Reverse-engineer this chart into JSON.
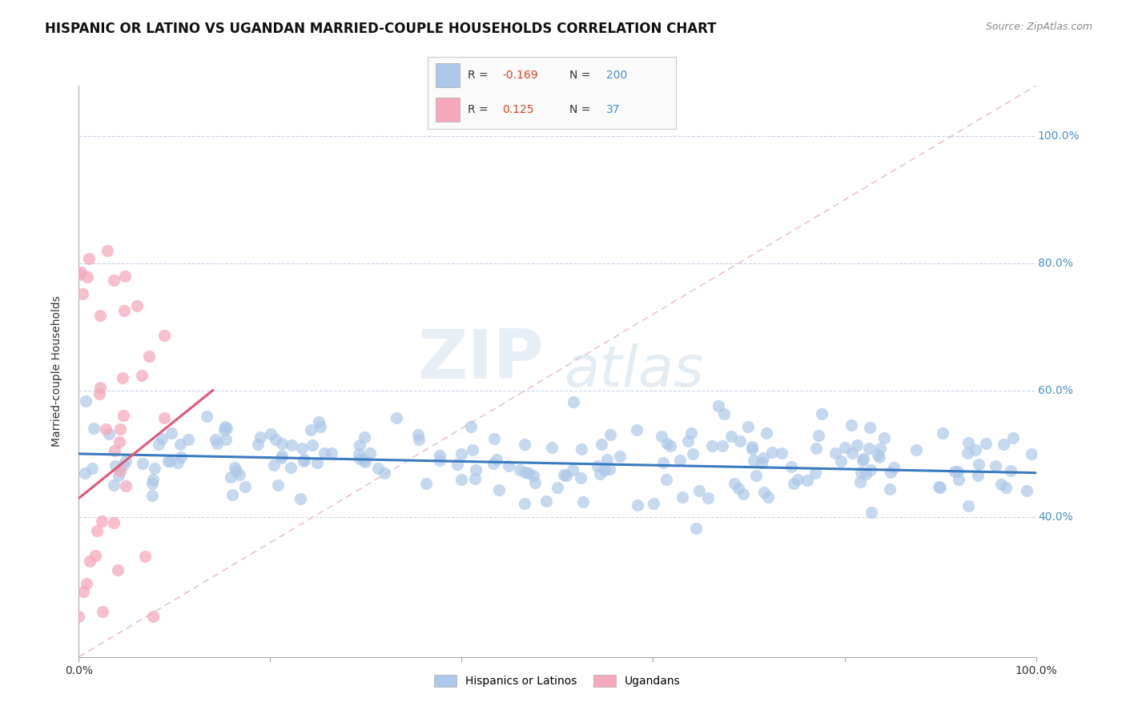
{
  "title": "HISPANIC OR LATINO VS UGANDAN MARRIED-COUPLE HOUSEHOLDS CORRELATION CHART",
  "source_text": "Source: ZipAtlas.com",
  "ylabel": "Married-couple Households",
  "xlim": [
    0.0,
    1.0
  ],
  "ylim": [
    0.18,
    1.08
  ],
  "xticks": [
    0.0,
    0.2,
    0.4,
    0.6,
    0.8,
    1.0
  ],
  "yticks": [
    0.4,
    0.6,
    0.8,
    1.0
  ],
  "xtick_labels": [
    "0.0%",
    "",
    "",
    "",
    "",
    "100.0%"
  ],
  "ytick_labels_right": [
    "40.0%",
    "60.0%",
    "80.0%",
    "100.0%"
  ],
  "blue_color": "#adc8e8",
  "pink_color": "#f5a8bc",
  "blue_line_color": "#3a7abf",
  "pink_line_color": "#e05878",
  "ref_line_color": "#e8b8c8",
  "R_blue": -0.169,
  "N_blue": 200,
  "R_pink": 0.125,
  "N_pink": 37,
  "blue_trend_x0": 0.0,
  "blue_trend_x1": 1.0,
  "blue_trend_y0": 0.5,
  "blue_trend_y1": 0.47,
  "pink_trend_x0": 0.0,
  "pink_trend_x1": 0.14,
  "pink_trend_y0": 0.43,
  "pink_trend_y1": 0.6,
  "watermark_zip": "ZIP",
  "watermark_atlas": "atlas",
  "background_color": "#ffffff",
  "grid_color": "#c8d4e8",
  "title_fontsize": 12,
  "axis_label_fontsize": 10,
  "tick_fontsize": 10,
  "legend_label_blue": "Hispanics or Latinos",
  "legend_label_pink": "Ugandans",
  "seed": 99
}
